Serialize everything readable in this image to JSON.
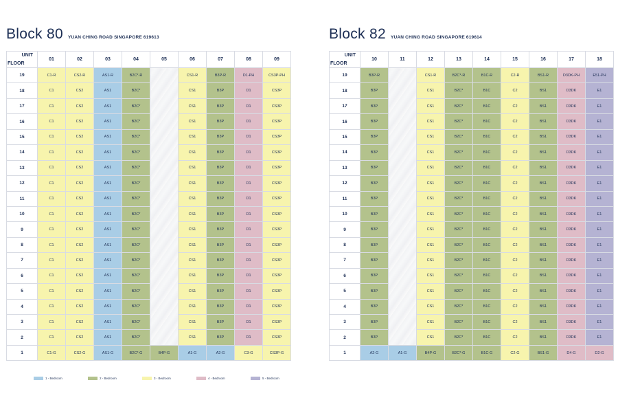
{
  "colors": {
    "1": "#a9cde6",
    "2": "#b3c28c",
    "3": "#f7f4ad",
    "4": "#dfbcc7",
    "5": "#b5b3d3"
  },
  "headers": {
    "unit": "UNIT",
    "floor": "FLOOR"
  },
  "legend": [
    {
      "label": "1 - Bedroom",
      "code": "1"
    },
    {
      "label": "2 - Bedroom",
      "code": "2"
    },
    {
      "label": "3 - Bedroom",
      "code": "3"
    },
    {
      "label": "4 - Bedroom",
      "code": "4"
    },
    {
      "label": "5 - Bedroom",
      "code": "5"
    }
  ],
  "blocks": [
    {
      "title": "Block 80",
      "address": "YUAN CHING ROAD SINGAPORE 619613",
      "units": [
        "01",
        "02",
        "03",
        "04",
        "05",
        "06",
        "07",
        "08",
        "09"
      ],
      "columns": [
        {
          "code": "3",
          "top": "C1-R",
          "typical": "C1",
          "ground": "C1-G",
          "ground_code": "3"
        },
        {
          "code": "3",
          "top": "CS2-R",
          "typical": "CS2",
          "ground": "CS2-G",
          "ground_code": "3"
        },
        {
          "code": "1",
          "top": "AS1-R",
          "typical": "AS1",
          "ground": "AS1-G",
          "ground_code": "1"
        },
        {
          "code": "2",
          "top": "B2C*-R",
          "typical": "B2C*",
          "ground": "B2C*-G",
          "ground_code": "2"
        },
        {
          "code": "void",
          "top": "",
          "typical": "",
          "ground": "B4P-G",
          "ground_code": "2"
        },
        {
          "code": "3",
          "top": "CS1-R",
          "typical": "CS1",
          "ground": "A1-G",
          "ground_code": "1"
        },
        {
          "code": "2",
          "top": "B3P-R",
          "typical": "B3P",
          "ground": "A2-G",
          "ground_code": "1"
        },
        {
          "code": "4",
          "top": "D1-PH",
          "typical": "D1",
          "ground": "C3-G",
          "ground_code": "3"
        },
        {
          "code": "3",
          "top": "CS3P-PH",
          "typical": "CS3P",
          "ground": "CS3P-G",
          "ground_code": "3"
        }
      ]
    },
    {
      "title": "Block 82",
      "address": "YUAN CHING ROAD SINGAPORE 619614",
      "units": [
        "10",
        "11",
        "12",
        "13",
        "14",
        "15",
        "16",
        "17",
        "18"
      ],
      "columns": [
        {
          "code": "2",
          "top": "B3P-R",
          "typical": "B3P",
          "ground": "A2-G",
          "ground_code": "1"
        },
        {
          "code": "void",
          "top": "",
          "typical": "",
          "ground": "A1-G",
          "ground_code": "1"
        },
        {
          "code": "3",
          "top": "CS1-R",
          "typical": "CS1",
          "ground": "B4P-G",
          "ground_code": "2"
        },
        {
          "code": "2",
          "top": "B2C*-R",
          "typical": "B2C*",
          "ground": "B2C*-G",
          "ground_code": "2"
        },
        {
          "code": "2",
          "top": "B1C-R",
          "typical": "B1C",
          "ground": "B1C-G",
          "ground_code": "2"
        },
        {
          "code": "3",
          "top": "C2-R",
          "typical": "C2",
          "ground": "C2-G",
          "ground_code": "3"
        },
        {
          "code": "2",
          "top": "BS1-R",
          "typical": "BS1",
          "ground": "BS1-G",
          "ground_code": "2"
        },
        {
          "code": "4",
          "top": "D3DK-PH",
          "typical": "D3DK",
          "ground": "D4-G",
          "ground_code": "4"
        },
        {
          "code": "5",
          "top": "E51-PH",
          "typical": "E1",
          "ground": "D2-G",
          "ground_code": "4"
        }
      ]
    }
  ],
  "floors": [
    "19",
    "18",
    "17",
    "16",
    "15",
    "14",
    "13",
    "12",
    "11",
    "10",
    "9",
    "8",
    "7",
    "6",
    "5",
    "4",
    "3",
    "2",
    "1"
  ]
}
